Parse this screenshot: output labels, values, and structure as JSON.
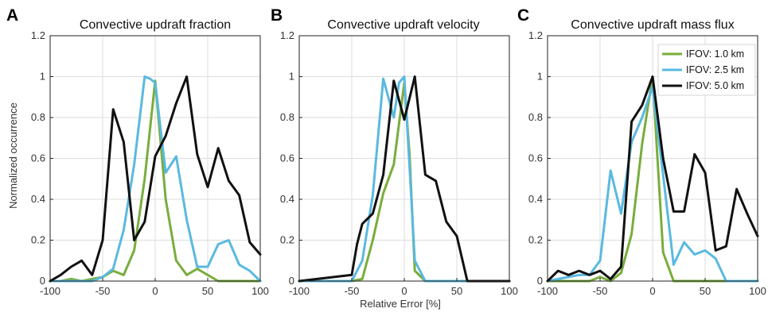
{
  "figure": {
    "ylabel": "Normalized occurrence",
    "xlabel": "Relative Error [%]"
  },
  "legend": {
    "position": "top-right of panel C",
    "entries": [
      {
        "label": "IFOV: 1.0 km",
        "color": "#79ad3c"
      },
      {
        "label": "IFOV: 2.5 km",
        "color": "#5ab9e0"
      },
      {
        "label": "IFOV: 5.0 km",
        "color": "#111111"
      }
    ]
  },
  "chart_data": [
    {
      "type": "line",
      "panel_label": "A",
      "title": "Convective updraft fraction",
      "xlim": [
        -100,
        100
      ],
      "ylim": [
        0,
        1.2
      ],
      "xticks": [
        "-100",
        "-50",
        "0",
        "50",
        "100"
      ],
      "yticks": [
        "0",
        "0.2",
        "0.4",
        "0.6",
        "0.8",
        "1",
        "1.2"
      ],
      "grid": true,
      "series": [
        {
          "name": "IFOV: 1.0 km",
          "color": "#79ad3c",
          "x": [
            -100,
            -90,
            -80,
            -70,
            -60,
            -50,
            -40,
            -30,
            -20,
            -10,
            0,
            10,
            20,
            30,
            40,
            50,
            60,
            70,
            80,
            90,
            100
          ],
          "y": [
            0,
            0,
            0.01,
            0,
            0.01,
            0.02,
            0.05,
            0.03,
            0.15,
            0.5,
            0.98,
            0.4,
            0.1,
            0.03,
            0.06,
            0.03,
            0,
            0,
            0,
            0,
            0
          ]
        },
        {
          "name": "IFOV: 2.5 km",
          "color": "#5ab9e0",
          "x": [
            -100,
            -90,
            -80,
            -70,
            -60,
            -50,
            -40,
            -30,
            -20,
            -10,
            -5,
            0,
            10,
            20,
            30,
            40,
            50,
            60,
            70,
            80,
            90,
            100
          ],
          "y": [
            0,
            0,
            0,
            0,
            0,
            0.02,
            0.06,
            0.25,
            0.57,
            1.0,
            0.99,
            0.97,
            0.53,
            0.61,
            0.3,
            0.07,
            0.07,
            0.18,
            0.2,
            0.08,
            0.05,
            0
          ]
        },
        {
          "name": "IFOV: 5.0 km",
          "color": "#111111",
          "x": [
            -100,
            -90,
            -80,
            -70,
            -60,
            -50,
            -40,
            -30,
            -20,
            -10,
            0,
            10,
            20,
            30,
            40,
            50,
            60,
            70,
            80,
            90,
            100
          ],
          "y": [
            0,
            0.03,
            0.07,
            0.1,
            0.03,
            0.2,
            0.84,
            0.68,
            0.2,
            0.29,
            0.61,
            0.71,
            0.87,
            1.0,
            0.62,
            0.46,
            0.65,
            0.49,
            0.42,
            0.19,
            0.13
          ]
        }
      ]
    },
    {
      "type": "line",
      "panel_label": "B",
      "title": "Convective updraft velocity",
      "xlim": [
        -100,
        100
      ],
      "ylim": [
        0,
        1.2
      ],
      "xticks": [
        "-100",
        "-50",
        "0",
        "50",
        "100"
      ],
      "yticks": [
        "0",
        "0.2",
        "0.4",
        "0.6",
        "0.8",
        "1",
        "1.2"
      ],
      "grid": true,
      "series": [
        {
          "name": "IFOV: 1.0 km",
          "color": "#79ad3c",
          "x": [
            -100,
            -50,
            -40,
            -30,
            -20,
            -10,
            0,
            5,
            10,
            20,
            100
          ],
          "y": [
            0,
            0,
            0.01,
            0.2,
            0.43,
            0.57,
            0.97,
            0.62,
            0.05,
            0,
            0
          ]
        },
        {
          "name": "IFOV: 2.5 km",
          "color": "#5ab9e0",
          "x": [
            -100,
            -50,
            -40,
            -30,
            -20,
            -10,
            -5,
            0,
            5,
            10,
            20,
            100
          ],
          "y": [
            0,
            0,
            0.1,
            0.42,
            0.99,
            0.8,
            0.97,
            1.0,
            0.56,
            0.1,
            0,
            0
          ]
        },
        {
          "name": "IFOV: 5.0 km",
          "color": "#111111",
          "x": [
            -100,
            -50,
            -45,
            -40,
            -30,
            -20,
            -10,
            0,
            10,
            20,
            30,
            40,
            50,
            60,
            100
          ],
          "y": [
            0,
            0.03,
            0.18,
            0.28,
            0.33,
            0.52,
            0.98,
            0.79,
            1.0,
            0.52,
            0.49,
            0.29,
            0.22,
            0,
            0
          ]
        }
      ]
    },
    {
      "type": "line",
      "panel_label": "C",
      "title": "Convective updraft mass flux",
      "xlim": [
        -100,
        100
      ],
      "ylim": [
        0,
        1.2
      ],
      "xticks": [
        "-100",
        "-50",
        "0",
        "50",
        "100"
      ],
      "yticks": [
        "0",
        "0.2",
        "0.4",
        "0.6",
        "0.8",
        "1",
        "1.2"
      ],
      "grid": true,
      "series": [
        {
          "name": "IFOV: 1.0 km",
          "color": "#79ad3c",
          "x": [
            -100,
            -90,
            -80,
            -70,
            -60,
            -50,
            -40,
            -30,
            -20,
            -10,
            0,
            10,
            20,
            100
          ],
          "y": [
            0,
            0,
            0,
            0,
            0,
            0.02,
            0,
            0.04,
            0.23,
            0.67,
            1.0,
            0.14,
            0,
            0
          ]
        },
        {
          "name": "IFOV: 2.5 km",
          "color": "#5ab9e0",
          "x": [
            -100,
            -90,
            -80,
            -70,
            -60,
            -50,
            -40,
            -30,
            -20,
            -10,
            0,
            10,
            20,
            30,
            40,
            50,
            60,
            70,
            80,
            90,
            100
          ],
          "y": [
            0,
            0.01,
            0.02,
            0.03,
            0.03,
            0.1,
            0.54,
            0.33,
            0.68,
            0.8,
            0.95,
            0.52,
            0.08,
            0.19,
            0.13,
            0.15,
            0.11,
            0,
            0,
            0,
            0
          ]
        },
        {
          "name": "IFOV: 5.0 km",
          "color": "#111111",
          "x": [
            -100,
            -90,
            -80,
            -70,
            -60,
            -50,
            -40,
            -30,
            -20,
            -10,
            0,
            10,
            20,
            30,
            40,
            50,
            60,
            65,
            70,
            80,
            90,
            100
          ],
          "y": [
            0,
            0.05,
            0.03,
            0.05,
            0.03,
            0.05,
            0.01,
            0.07,
            0.78,
            0.86,
            1.0,
            0.6,
            0.34,
            0.34,
            0.62,
            0.53,
            0.15,
            0.16,
            0.17,
            0.45,
            0.33,
            0.22
          ]
        }
      ]
    }
  ]
}
